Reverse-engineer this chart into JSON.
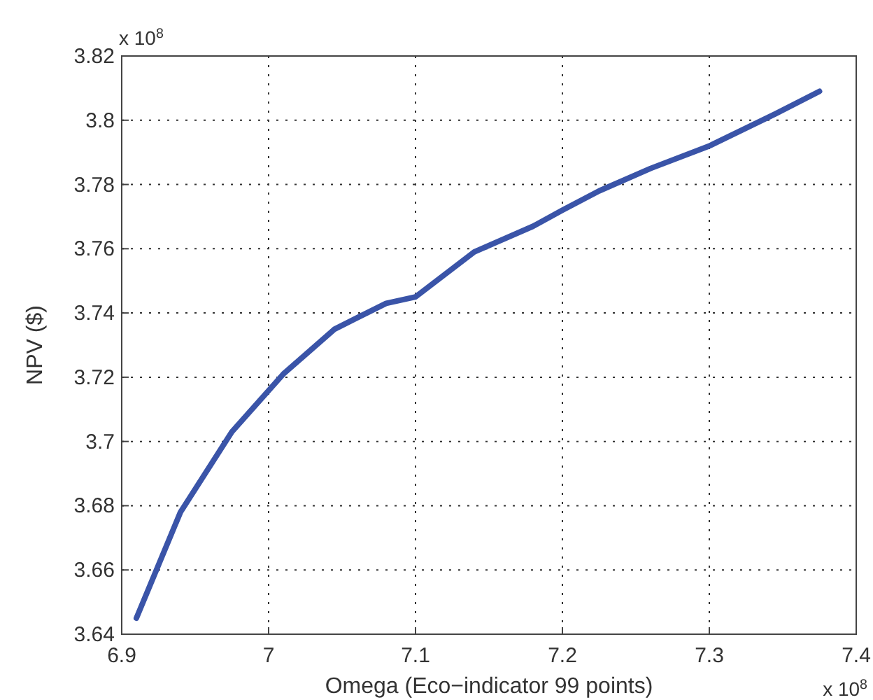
{
  "chart_data": {
    "type": "line",
    "xlabel": "Omega (Eco−indicator 99 points)",
    "ylabel": "NPV ($)",
    "x": [
      6.91,
      6.94,
      6.975,
      7.01,
      7.045,
      7.08,
      7.1,
      7.14,
      7.18,
      7.2,
      7.225,
      7.26,
      7.3,
      7.345,
      7.375
    ],
    "series": [
      {
        "color": "#3a54a8",
        "values": [
          3.645,
          3.678,
          3.703,
          3.721,
          3.735,
          3.743,
          3.745,
          3.759,
          3.767,
          3.772,
          3.778,
          3.785,
          3.792,
          3.802,
          3.809
        ]
      }
    ],
    "xlim": [
      6.9,
      7.4
    ],
    "xticks": [
      6.9,
      7,
      7.1,
      7.2,
      7.3,
      7.4
    ],
    "ylim": [
      3.64,
      3.82
    ],
    "yticks": [
      3.64,
      3.66,
      3.68,
      3.7,
      3.72,
      3.74,
      3.76,
      3.78,
      3.8,
      3.82
    ],
    "grid": true,
    "line_style": "solid",
    "marker": "none",
    "annotations": [
      "x 10$^{8}$",
      "x 10$^{8}$"
    ]
  }
}
